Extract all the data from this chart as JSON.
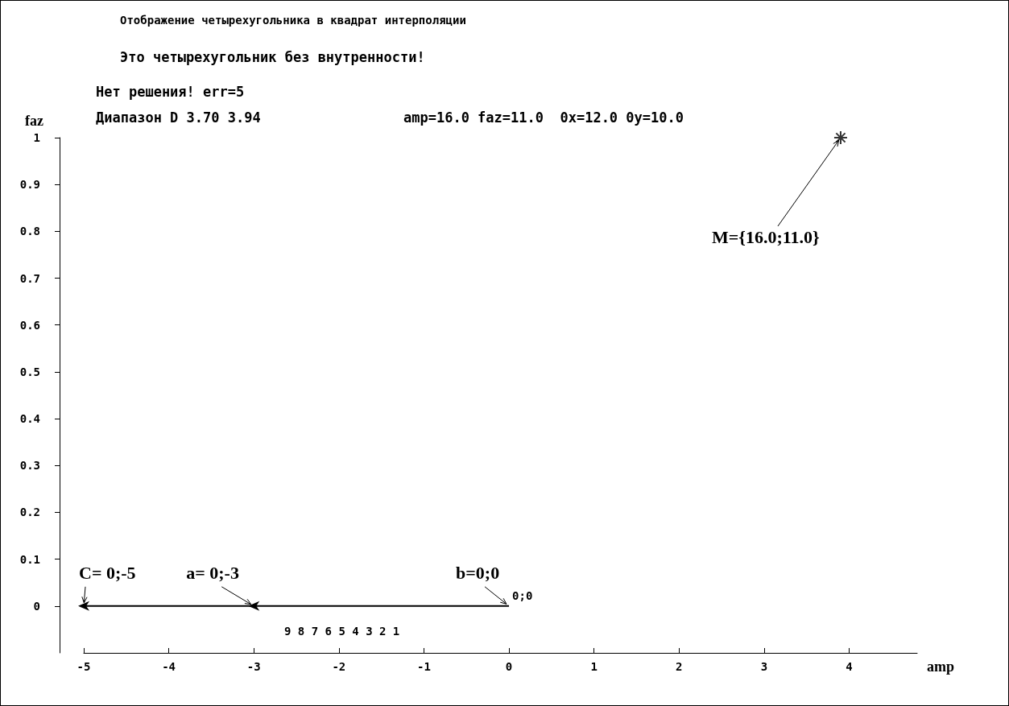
{
  "chart_data": {
    "type": "line",
    "title": "Отображение четырехугольника в квадрат интерполяции",
    "subtitle": "Это четырехугольник без внутренности!",
    "xlabel": "amp",
    "ylabel": "faz",
    "series": [
      {
        "color": "#000000",
        "x": [
          0,
          -3,
          -5
        ],
        "values": [
          0,
          0,
          0
        ]
      },
      {
        "type": "scatter",
        "color": "#000000",
        "marker": "cross",
        "x": [
          3.9
        ],
        "values": [
          1.0
        ]
      }
    ],
    "xlim": [
      -5,
      4.8
    ],
    "xticks": [
      -5,
      -4,
      -3,
      -2,
      -1,
      0,
      1,
      2,
      3,
      4
    ],
    "ylim": [
      -0.1,
      1
    ],
    "yticks": [
      0,
      0.1,
      0.2,
      0.3,
      0.4,
      0.5,
      0.6,
      0.7,
      0.8,
      0.9,
      1
    ],
    "grid": false,
    "annotations": [
      "Нет решения! err=5",
      "Диапазон D 3.70 3.94",
      "amp=16.0 faz=11.0  0x=12.0 0y=10.0",
      "9 8 7 6 5 4 3 2 1",
      {
        "text": "C= 0;-5",
        "x": -5,
        "y": 0
      },
      {
        "text": "a= 0;-3",
        "x": -3,
        "y": 0
      },
      {
        "text": "b=0;0",
        "x": 0,
        "y": 0
      },
      {
        "text": "0;0",
        "x": 0,
        "y": 0
      },
      {
        "text": "M={16.0;11.0}",
        "x": 3.9,
        "y": 1.0
      }
    ]
  }
}
